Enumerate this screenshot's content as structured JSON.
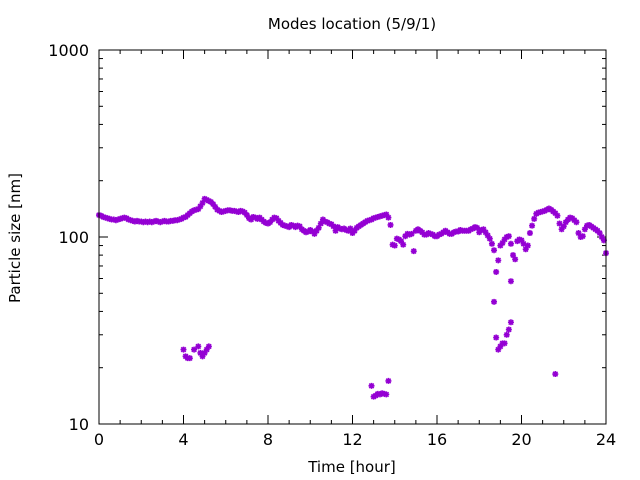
{
  "chart_data": {
    "type": "scatter",
    "title": "Modes location (5/9/1)",
    "xlabel": "Time [hour]",
    "ylabel": "Particle size [nm]",
    "xlim": [
      0,
      24
    ],
    "ylim": [
      10,
      1000
    ],
    "yscale": "log",
    "grid": false,
    "legend": "none",
    "marker_color": "#9400d3",
    "x_ticks": [
      0,
      4,
      8,
      12,
      16,
      20,
      24
    ],
    "x_tick_labels": [
      "0",
      "4",
      "8",
      "12",
      "16",
      "20",
      "24"
    ],
    "y_ticks": [
      10,
      100,
      1000
    ],
    "y_tick_labels": [
      "10",
      "100",
      "1000"
    ],
    "series": [
      {
        "points": [
          [
            0.0,
            131
          ],
          [
            0.1,
            130
          ],
          [
            0.2,
            128
          ],
          [
            0.3,
            127
          ],
          [
            0.4,
            126
          ],
          [
            0.5,
            125
          ],
          [
            0.6,
            124
          ],
          [
            0.7,
            124
          ],
          [
            0.8,
            123
          ],
          [
            0.9,
            124
          ],
          [
            1.0,
            125
          ],
          [
            1.1,
            126
          ],
          [
            1.2,
            127
          ],
          [
            1.3,
            126
          ],
          [
            1.4,
            124
          ],
          [
            1.5,
            123
          ],
          [
            1.6,
            122
          ],
          [
            1.7,
            121
          ],
          [
            1.8,
            122
          ],
          [
            1.9,
            121
          ],
          [
            2.0,
            121
          ],
          [
            2.1,
            120
          ],
          [
            2.2,
            121
          ],
          [
            2.3,
            120
          ],
          [
            2.4,
            121
          ],
          [
            2.5,
            120
          ],
          [
            2.6,
            121
          ],
          [
            2.7,
            122
          ],
          [
            2.8,
            121
          ],
          [
            2.9,
            120
          ],
          [
            3.0,
            121
          ],
          [
            3.1,
            122
          ],
          [
            3.2,
            121
          ],
          [
            3.3,
            121
          ],
          [
            3.4,
            122
          ],
          [
            3.5,
            122
          ],
          [
            3.6,
            123
          ],
          [
            3.7,
            123
          ],
          [
            3.8,
            124
          ],
          [
            3.9,
            125
          ],
          [
            4.0,
            127
          ],
          [
            4.1,
            128
          ],
          [
            4.2,
            131
          ],
          [
            4.3,
            134
          ],
          [
            4.4,
            137
          ],
          [
            4.5,
            139
          ],
          [
            4.6,
            140
          ],
          [
            4.7,
            141
          ],
          [
            4.8,
            146
          ],
          [
            4.9,
            152
          ],
          [
            5.0,
            160
          ],
          [
            5.1,
            158
          ],
          [
            5.2,
            156
          ],
          [
            5.3,
            154
          ],
          [
            5.4,
            150
          ],
          [
            5.5,
            145
          ],
          [
            5.6,
            140
          ],
          [
            5.7,
            138
          ],
          [
            5.8,
            136
          ],
          [
            5.9,
            137
          ],
          [
            6.0,
            138
          ],
          [
            6.1,
            139
          ],
          [
            6.2,
            139
          ],
          [
            6.3,
            138
          ],
          [
            6.4,
            138
          ],
          [
            6.5,
            137
          ],
          [
            6.6,
            136
          ],
          [
            6.7,
            138
          ],
          [
            6.8,
            137
          ],
          [
            6.9,
            135
          ],
          [
            7.0,
            131
          ],
          [
            7.1,
            126
          ],
          [
            7.2,
            124
          ],
          [
            7.3,
            128
          ],
          [
            7.4,
            127
          ],
          [
            7.5,
            125
          ],
          [
            7.6,
            127
          ],
          [
            7.7,
            124
          ],
          [
            7.8,
            121
          ],
          [
            7.9,
            119
          ],
          [
            8.0,
            118
          ],
          [
            8.1,
            120
          ],
          [
            8.2,
            124
          ],
          [
            8.3,
            127
          ],
          [
            8.4,
            126
          ],
          [
            8.5,
            122
          ],
          [
            8.6,
            119
          ],
          [
            8.7,
            116
          ],
          [
            8.8,
            115
          ],
          [
            8.9,
            114
          ],
          [
            9.0,
            113
          ],
          [
            9.1,
            116
          ],
          [
            9.2,
            115
          ],
          [
            9.3,
            113
          ],
          [
            9.4,
            115
          ],
          [
            9.5,
            114
          ],
          [
            9.6,
            110
          ],
          [
            9.7,
            108
          ],
          [
            9.8,
            106
          ],
          [
            9.9,
            107
          ],
          [
            10.0,
            109
          ],
          [
            10.1,
            107
          ],
          [
            10.2,
            104
          ],
          [
            10.3,
            108
          ],
          [
            10.4,
            112
          ],
          [
            10.5,
            118
          ],
          [
            10.6,
            124
          ],
          [
            10.7,
            121
          ],
          [
            10.8,
            120
          ],
          [
            10.9,
            118
          ],
          [
            11.0,
            117
          ],
          [
            11.1,
            114
          ],
          [
            11.2,
            108
          ],
          [
            11.3,
            113
          ],
          [
            11.4,
            111
          ],
          [
            11.5,
            110
          ],
          [
            11.6,
            111
          ],
          [
            11.7,
            109
          ],
          [
            11.8,
            108
          ],
          [
            11.9,
            111
          ],
          [
            12.0,
            105
          ],
          [
            12.1,
            108
          ],
          [
            12.2,
            112
          ],
          [
            12.3,
            114
          ],
          [
            12.4,
            116
          ],
          [
            12.5,
            118
          ],
          [
            12.6,
            120
          ],
          [
            12.7,
            122
          ],
          [
            12.8,
            123
          ],
          [
            12.9,
            124
          ],
          [
            13.0,
            126
          ],
          [
            13.1,
            127
          ],
          [
            13.2,
            128
          ],
          [
            13.3,
            129
          ],
          [
            13.4,
            130
          ],
          [
            13.5,
            131
          ],
          [
            13.6,
            132
          ],
          [
            13.7,
            127
          ],
          [
            13.8,
            116
          ],
          [
            13.9,
            91
          ],
          [
            14.0,
            90
          ],
          [
            14.1,
            98
          ],
          [
            14.2,
            97
          ],
          [
            14.3,
            95
          ],
          [
            14.4,
            91
          ],
          [
            14.5,
            101
          ],
          [
            14.6,
            104
          ],
          [
            14.7,
            103
          ],
          [
            14.8,
            104
          ],
          [
            14.9,
            84
          ],
          [
            15.0,
            108
          ],
          [
            15.1,
            110
          ],
          [
            15.2,
            108
          ],
          [
            15.3,
            106
          ],
          [
            15.4,
            103
          ],
          [
            15.5,
            103
          ],
          [
            15.6,
            105
          ],
          [
            15.7,
            104
          ],
          [
            15.8,
            103
          ],
          [
            15.9,
            101
          ],
          [
            16.0,
            101
          ],
          [
            16.1,
            103
          ],
          [
            16.2,
            104
          ],
          [
            16.3,
            106
          ],
          [
            16.4,
            108
          ],
          [
            16.5,
            106
          ],
          [
            16.6,
            104
          ],
          [
            16.7,
            104
          ],
          [
            16.8,
            106
          ],
          [
            16.9,
            107
          ],
          [
            17.0,
            107
          ],
          [
            17.1,
            109
          ],
          [
            17.2,
            108
          ],
          [
            17.3,
            108
          ],
          [
            17.4,
            108
          ],
          [
            17.5,
            108
          ],
          [
            17.6,
            110
          ],
          [
            17.7,
            111
          ],
          [
            17.8,
            113
          ],
          [
            17.9,
            112
          ],
          [
            18.0,
            106
          ],
          [
            18.1,
            109
          ],
          [
            18.2,
            110
          ],
          [
            18.3,
            106
          ],
          [
            18.4,
            102
          ],
          [
            18.5,
            98
          ],
          [
            18.6,
            92
          ],
          [
            18.7,
            85
          ],
          [
            18.8,
            65
          ],
          [
            18.9,
            75
          ],
          [
            19.0,
            90
          ],
          [
            19.1,
            93
          ],
          [
            19.2,
            97
          ],
          [
            19.3,
            100
          ],
          [
            19.4,
            101
          ],
          [
            19.5,
            92
          ],
          [
            19.6,
            80
          ],
          [
            19.7,
            76
          ],
          [
            19.8,
            95
          ],
          [
            19.9,
            97
          ],
          [
            20.0,
            96
          ],
          [
            20.1,
            92
          ],
          [
            20.2,
            86
          ],
          [
            20.3,
            90
          ],
          [
            20.4,
            105
          ],
          [
            20.5,
            115
          ],
          [
            20.6,
            125
          ],
          [
            20.7,
            133
          ],
          [
            20.8,
            135
          ],
          [
            20.9,
            136
          ],
          [
            21.0,
            137
          ],
          [
            21.1,
            138
          ],
          [
            21.2,
            140
          ],
          [
            21.3,
            142
          ],
          [
            21.4,
            140
          ],
          [
            21.5,
            137
          ],
          [
            21.6,
            134
          ],
          [
            21.7,
            130
          ],
          [
            21.8,
            118
          ],
          [
            21.9,
            110
          ],
          [
            22.0,
            114
          ],
          [
            22.1,
            120
          ],
          [
            22.2,
            124
          ],
          [
            22.3,
            127
          ],
          [
            22.4,
            126
          ],
          [
            22.5,
            123
          ],
          [
            22.6,
            120
          ],
          [
            22.7,
            105
          ],
          [
            22.8,
            100
          ],
          [
            22.9,
            101
          ],
          [
            23.0,
            110
          ],
          [
            23.1,
            115
          ],
          [
            23.2,
            116
          ],
          [
            23.3,
            114
          ],
          [
            23.4,
            112
          ],
          [
            23.5,
            110
          ],
          [
            23.6,
            108
          ],
          [
            23.7,
            105
          ],
          [
            23.8,
            100
          ],
          [
            23.9,
            96
          ],
          [
            24.0,
            82
          ],
          [
            19.5,
            58
          ],
          [
            4.0,
            25
          ],
          [
            4.1,
            23
          ],
          [
            4.2,
            22.5
          ],
          [
            4.3,
            22.5
          ],
          [
            4.5,
            25
          ],
          [
            4.7,
            26
          ],
          [
            4.8,
            24
          ],
          [
            4.9,
            23
          ],
          [
            5.0,
            24
          ],
          [
            5.1,
            25
          ],
          [
            5.2,
            26
          ],
          [
            12.9,
            16
          ],
          [
            13.0,
            14
          ],
          [
            13.1,
            14.2
          ],
          [
            13.2,
            14.5
          ],
          [
            13.3,
            14.4
          ],
          [
            13.4,
            14.6
          ],
          [
            13.5,
            14.5
          ],
          [
            13.6,
            14.4
          ],
          [
            13.7,
            17
          ],
          [
            18.7,
            45
          ],
          [
            18.8,
            29
          ],
          [
            18.9,
            25
          ],
          [
            19.0,
            26
          ],
          [
            19.1,
            27
          ],
          [
            19.2,
            27
          ],
          [
            19.3,
            30
          ],
          [
            19.4,
            32
          ],
          [
            19.5,
            35
          ],
          [
            21.6,
            18.5
          ]
        ]
      }
    ]
  }
}
